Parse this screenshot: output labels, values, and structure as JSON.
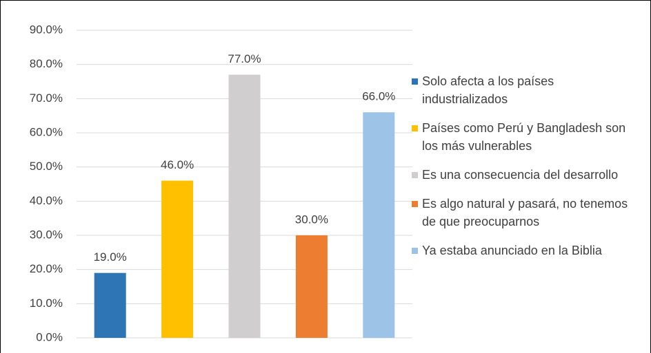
{
  "chart_data": {
    "type": "bar",
    "categories": [
      null
    ],
    "series": [
      {
        "name": "Solo afecta a los países industrializados",
        "color": "#2e75b6",
        "values": [
          19
        ],
        "value_labels": [
          "19.0%"
        ]
      },
      {
        "name": "Países como Perú y Bangladesh son los más vulnerables",
        "color": "#ffc000",
        "values": [
          46
        ],
        "value_labels": [
          "46.0%"
        ]
      },
      {
        "name": "Es una consecuencia del desarrollo",
        "color": "#d0cece",
        "values": [
          77
        ],
        "value_labels": [
          "77.0%"
        ]
      },
      {
        "name": "Es algo natural y pasará, no tenemos de que preocuparnos",
        "color": "#ed7d31",
        "values": [
          30
        ],
        "value_labels": [
          "30.0%"
        ]
      },
      {
        "name": "Ya estaba anunciado en la Biblia",
        "color": "#9dc3e6",
        "values": [
          66
        ],
        "value_labels": [
          "66.0%"
        ]
      }
    ],
    "ylim": [
      0,
      90
    ],
    "yticks": [
      {
        "value": 0,
        "label": "0.0%"
      },
      {
        "value": 10,
        "label": "10.0%"
      },
      {
        "value": 20,
        "label": "20.0%"
      },
      {
        "value": 30,
        "label": "30.0%"
      },
      {
        "value": 40,
        "label": "40.0%"
      },
      {
        "value": 50,
        "label": "50.0%"
      },
      {
        "value": 60,
        "label": "60.0%"
      },
      {
        "value": 70,
        "label": "70.0%"
      },
      {
        "value": 80,
        "label": "80.0%"
      },
      {
        "value": 90,
        "label": "90.0%"
      }
    ],
    "grid": true,
    "legend": "right"
  }
}
